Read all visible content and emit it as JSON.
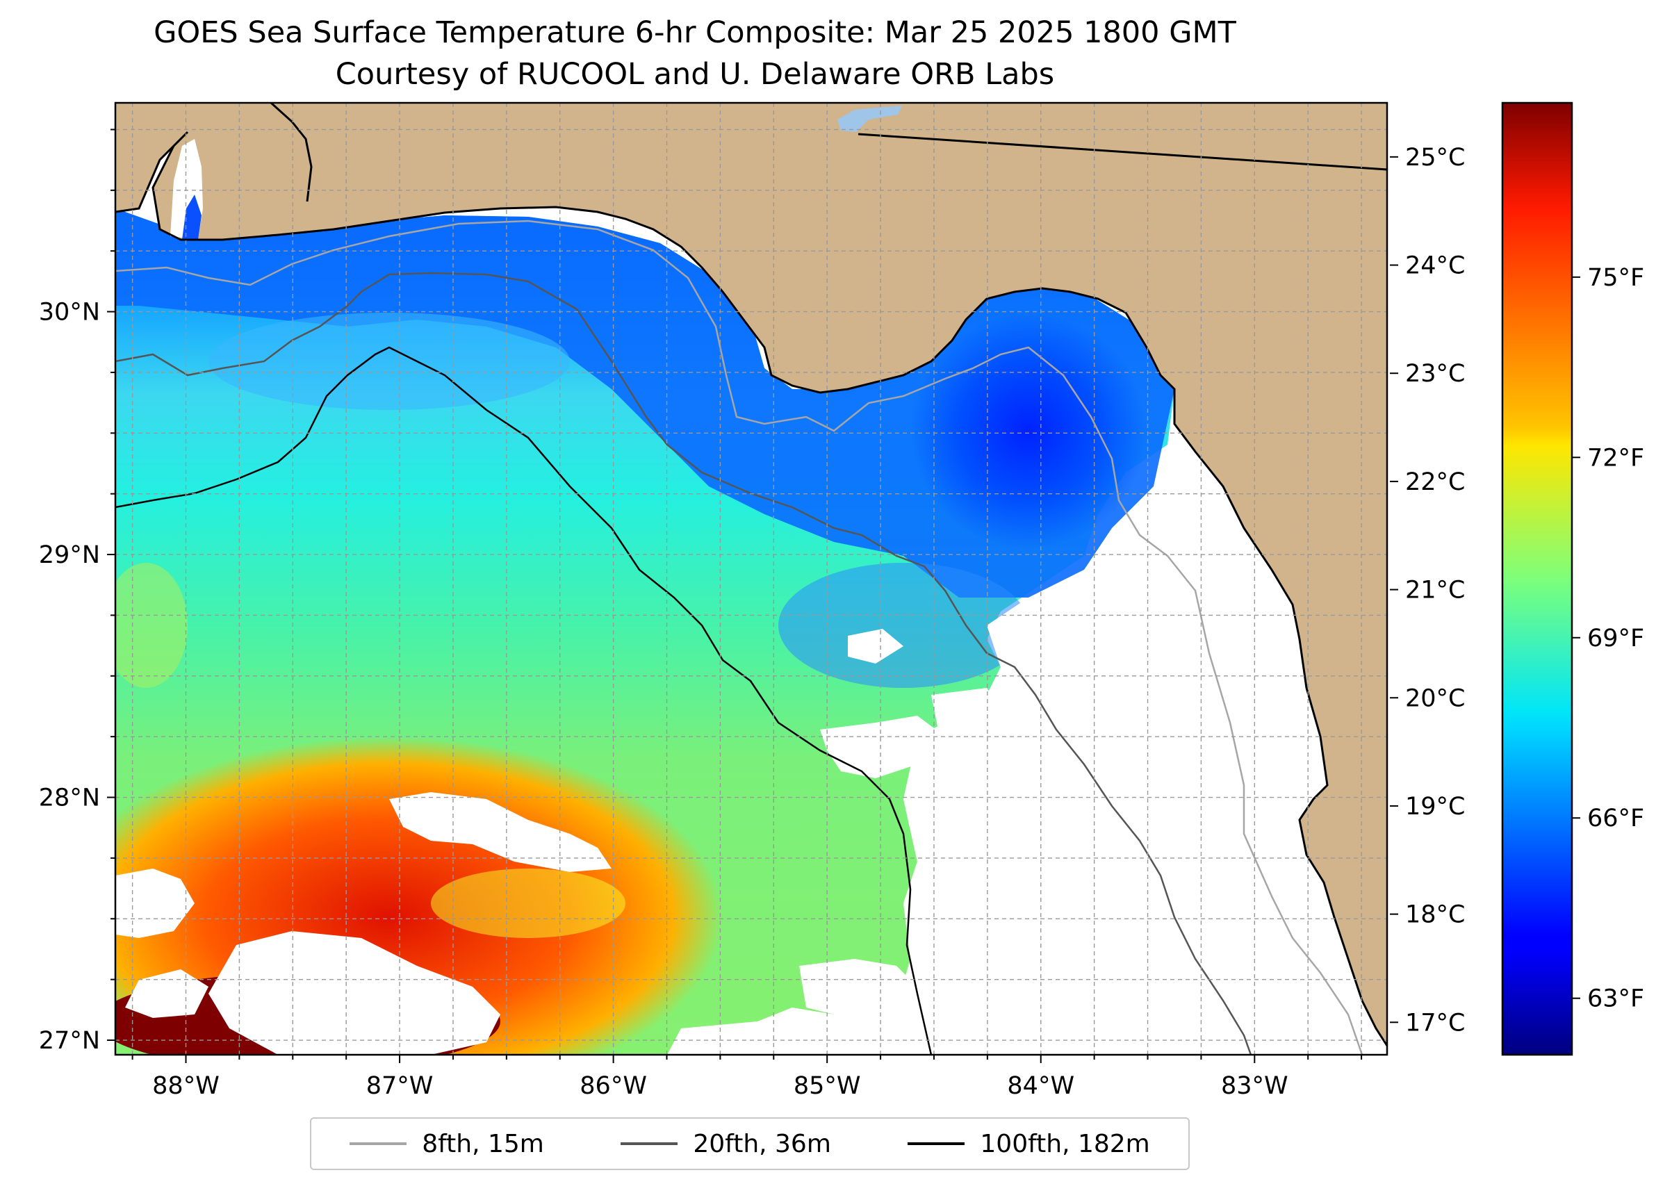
{
  "title": {
    "line1": "GOES Sea Surface Temperature 6-hr Composite: Mar 25 2025 1800 GMT",
    "line2": "Courtesy of RUCOOL and U. Delaware ORB Labs"
  },
  "map": {
    "lon_range": [
      -88.33,
      -82.38
    ],
    "lat_range": [
      26.94,
      30.86
    ],
    "lon_ticks": [
      {
        "value": -88,
        "label": "88°W"
      },
      {
        "value": -87,
        "label": "87°W"
      },
      {
        "value": -86,
        "label": "86°W"
      },
      {
        "value": -85,
        "label": "85°W"
      },
      {
        "value": -84,
        "label": "84°W"
      },
      {
        "value": -83,
        "label": "83°W"
      }
    ],
    "lat_ticks": [
      {
        "value": 27,
        "label": "27°N"
      },
      {
        "value": 28,
        "label": "28°N"
      },
      {
        "value": 29,
        "label": "29°N"
      },
      {
        "value": 30,
        "label": "30°N"
      }
    ],
    "colors": {
      "land": "#d2b48c",
      "no_data": "#ffffff",
      "coastline": "#000000",
      "grid": "#a0a0a0",
      "lake": "#9fc5e8"
    }
  },
  "colorbar": {
    "colormap": "jet",
    "celsius_range": [
      16.7,
      25.5
    ],
    "celsius_ticks": [
      {
        "value": 17,
        "label": "17°C"
      },
      {
        "value": 18,
        "label": "18°C"
      },
      {
        "value": 19,
        "label": "19°C"
      },
      {
        "value": 20,
        "label": "20°C"
      },
      {
        "value": 21,
        "label": "21°C"
      },
      {
        "value": 22,
        "label": "22°C"
      },
      {
        "value": 23,
        "label": "23°C"
      },
      {
        "value": 24,
        "label": "24°C"
      },
      {
        "value": 25,
        "label": "25°C"
      }
    ],
    "fahrenheit_ticks": [
      {
        "value": 63,
        "label": "63°F"
      },
      {
        "value": 66,
        "label": "66°F"
      },
      {
        "value": 69,
        "label": "69°F"
      },
      {
        "value": 72,
        "label": "72°F"
      },
      {
        "value": 75,
        "label": "75°F"
      }
    ]
  },
  "legend": {
    "items": [
      {
        "label": "8fth, 15m",
        "color": "#a6a6a6"
      },
      {
        "label": "20fth, 36m",
        "color": "#555555"
      },
      {
        "label": "100fth, 182m",
        "color": "#000000"
      }
    ]
  }
}
